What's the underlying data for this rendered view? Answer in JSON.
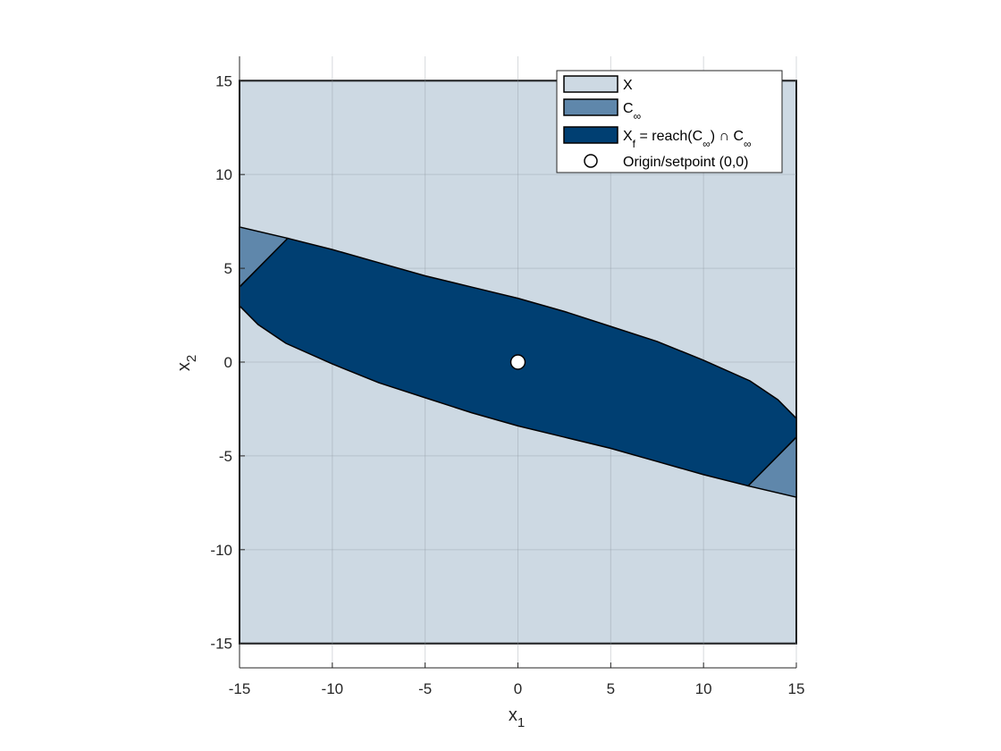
{
  "chart_data": {
    "type": "area",
    "xlabel": {
      "base": "x",
      "sub": "1"
    },
    "ylabel": {
      "base": "x",
      "sub": "2"
    },
    "xlim": [
      -15,
      15
    ],
    "ylim": [
      -16.3,
      16.3
    ],
    "xticks": [
      -15,
      -10,
      -5,
      0,
      5,
      10,
      15
    ],
    "yticks": [
      -15,
      -10,
      -5,
      0,
      5,
      10,
      15
    ],
    "grid": true,
    "legend_position": "top-right",
    "series": [
      {
        "key": "X",
        "name": "X",
        "legend": {
          "base": "X",
          "sub": "",
          "rest": ""
        },
        "color": "#cdd9e3",
        "polygon": [
          [
            -15,
            -15
          ],
          [
            15,
            -15
          ],
          [
            15,
            15
          ],
          [
            -15,
            15
          ]
        ]
      },
      {
        "key": "Cinf",
        "name": "C∞",
        "legend": {
          "base": "C",
          "sub": "∞",
          "rest": ""
        },
        "color": "#5f87ab",
        "polygons": [
          [
            [
              -15,
              4
            ],
            [
              -15,
              7.2
            ],
            [
              -12.4,
              6.6
            ]
          ],
          [
            [
              15,
              -4
            ],
            [
              15,
              -7.2
            ],
            [
              12.4,
              -6.6
            ]
          ]
        ]
      },
      {
        "key": "Xf",
        "name": "Xf = reach(C∞) ∩ C∞",
        "legend": {
          "base": "X",
          "sub": "f",
          "rest": " = reach(C",
          "sub2": "∞",
          "rest2": ") ∩ C",
          "sub3": "∞"
        },
        "color": "#003f72",
        "polygon": [
          [
            -15,
            4
          ],
          [
            -12.4,
            6.6
          ],
          [
            -10,
            6
          ],
          [
            -7.5,
            5.3
          ],
          [
            -5,
            4.6
          ],
          [
            -2.5,
            4
          ],
          [
            0,
            3.4
          ],
          [
            2.5,
            2.7
          ],
          [
            5,
            1.9
          ],
          [
            7.5,
            1.1
          ],
          [
            10,
            0.1
          ],
          [
            12.5,
            -1.0
          ],
          [
            14,
            -2.0
          ],
          [
            15,
            -3.0
          ],
          [
            15,
            -4
          ],
          [
            12.4,
            -6.6
          ],
          [
            10,
            -6
          ],
          [
            7.5,
            -5.3
          ],
          [
            5,
            -4.6
          ],
          [
            2.5,
            -4
          ],
          [
            0,
            -3.4
          ],
          [
            -2.5,
            -2.7
          ],
          [
            -5,
            -1.9
          ],
          [
            -7.5,
            -1.1
          ],
          [
            -10,
            -0.1
          ],
          [
            -12.5,
            1.0
          ],
          [
            -14,
            2.0
          ],
          [
            -15,
            3.0
          ]
        ]
      },
      {
        "key": "origin",
        "name": "Origin/setpoint (0,0)",
        "legend": {
          "base": "Origin/setpoint (0,0)",
          "sub": "",
          "rest": ""
        },
        "color": "#ffffff",
        "marker": "circle",
        "points": [
          [
            0,
            0
          ]
        ]
      }
    ]
  }
}
